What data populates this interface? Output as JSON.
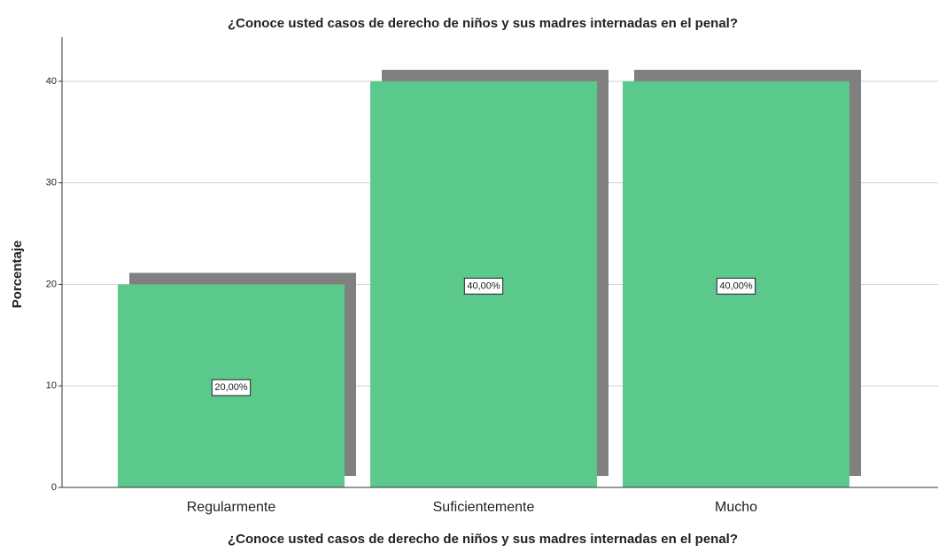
{
  "chart_data": {
    "type": "bar",
    "title": "¿Conoce usted casos de derecho de niños y sus madres internadas en el penal?",
    "x_label": "¿Conoce usted casos de derecho de niños y sus madres internadas en el penal?",
    "y_label": "Porcentaje",
    "categories": [
      "Regularmente",
      "Suficientemente",
      "Mucho"
    ],
    "values": [
      20,
      40,
      40
    ],
    "value_labels": [
      "20,00%",
      "40,00%",
      "40,00%"
    ],
    "color": "#5bc98c",
    "shadow_color": "#808080",
    "ylim": [
      0,
      44
    ],
    "yticks": [
      0,
      10,
      20,
      30,
      40
    ],
    "grid": true
  }
}
